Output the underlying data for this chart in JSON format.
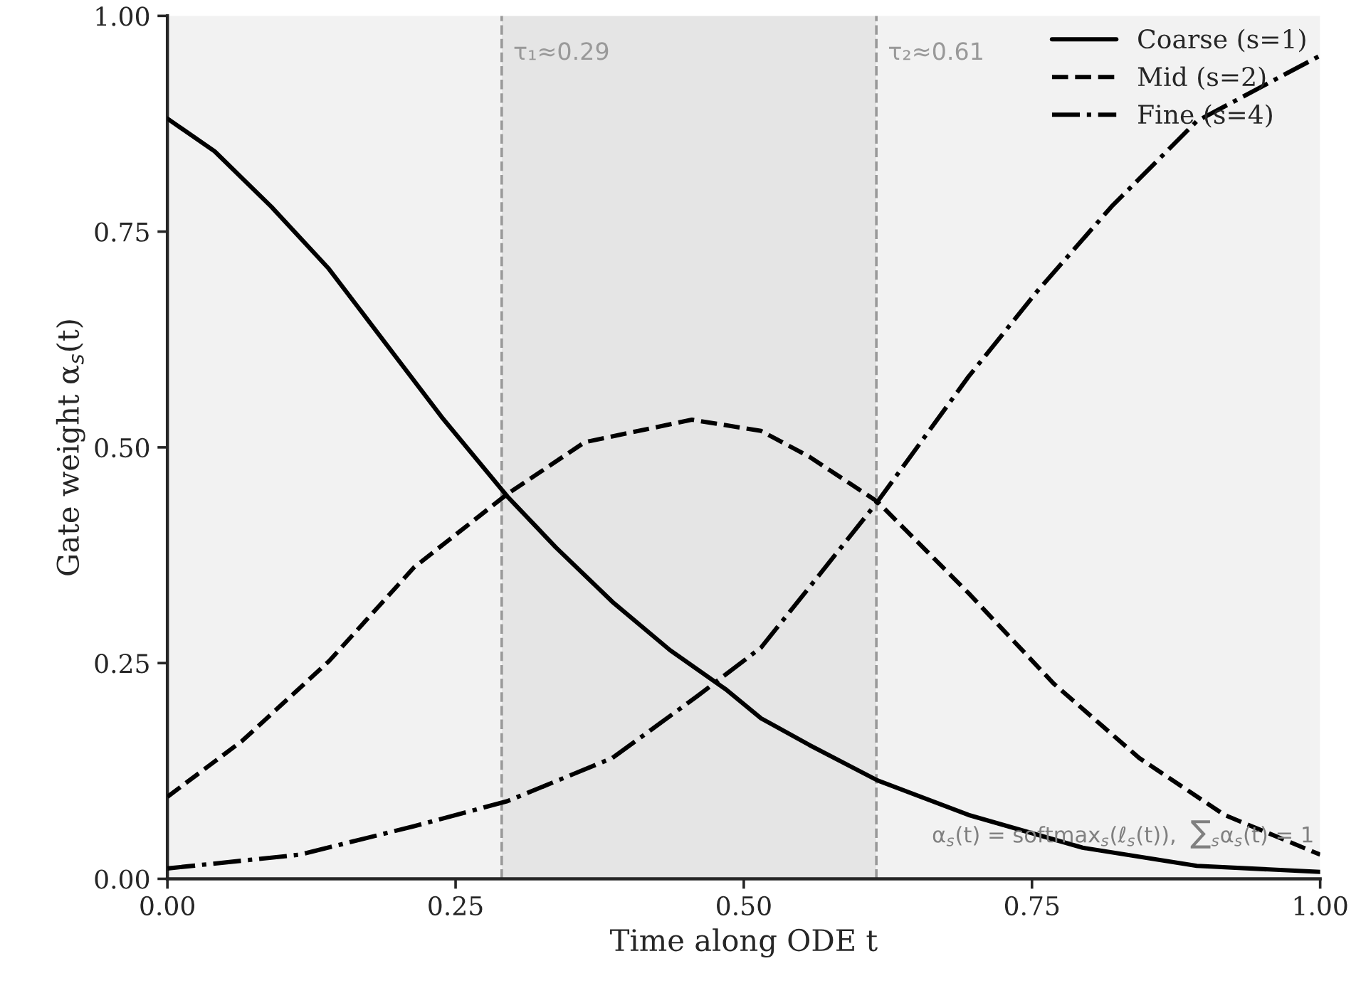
{
  "chart_data": {
    "type": "line",
    "xlabel": "Time along ODE t",
    "ylabel": "Gate weight α$_{s}$(t)",
    "xlim": [
      0,
      1
    ],
    "ylim": [
      0,
      1
    ],
    "xticks": [
      {
        "value": 0,
        "label": "0.00"
      },
      {
        "value": 0.25,
        "label": "0.25"
      },
      {
        "value": 0.5,
        "label": "0.50"
      },
      {
        "value": 0.75,
        "label": "0.75"
      },
      {
        "value": 1,
        "label": "1.00"
      }
    ],
    "yticks": [
      {
        "value": 0,
        "label": "0.00"
      },
      {
        "value": 0.25,
        "label": "0.25"
      },
      {
        "value": 0.5,
        "label": "0.50"
      },
      {
        "value": 0.75,
        "label": "0.75"
      },
      {
        "value": 1,
        "label": "1.00"
      }
    ],
    "grid": false,
    "legend": "top right",
    "series": [
      {
        "name": "Coarse (s=1)",
        "color": "#000000",
        "line_style": "solid",
        "x": [
          0,
          0.041,
          0.09,
          0.14,
          0.189,
          0.238,
          0.295,
          0.337,
          0.386,
          0.436,
          0.485,
          0.515,
          0.557,
          0.616,
          0.695,
          0.794,
          0.893,
          1.0
        ],
        "values": [
          0.881,
          0.843,
          0.779,
          0.707,
          0.621,
          0.535,
          0.443,
          0.384,
          0.321,
          0.265,
          0.219,
          0.186,
          0.155,
          0.114,
          0.074,
          0.036,
          0.015,
          0.008
        ]
      },
      {
        "name": "Mid (s=2)",
        "color": "#000000",
        "line_style": "dashed",
        "x": [
          0,
          0.065,
          0.14,
          0.214,
          0.295,
          0.362,
          0.455,
          0.515,
          0.557,
          0.616,
          0.695,
          0.769,
          0.843,
          0.917,
          1.0
        ],
        "values": [
          0.095,
          0.16,
          0.252,
          0.361,
          0.446,
          0.506,
          0.532,
          0.519,
          0.489,
          0.437,
          0.331,
          0.226,
          0.14,
          0.074,
          0.028
        ]
      },
      {
        "name": "Fine (s=4)",
        "color": "#000000",
        "line_style": "dashdot",
        "x": [
          0,
          0.115,
          0.214,
          0.295,
          0.386,
          0.46,
          0.515,
          0.557,
          0.616,
          0.695,
          0.754,
          0.819,
          0.893,
          1.0
        ],
        "values": [
          0.012,
          0.028,
          0.061,
          0.09,
          0.14,
          0.212,
          0.268,
          0.338,
          0.437,
          0.582,
          0.68,
          0.779,
          0.878,
          0.954
        ]
      }
    ],
    "bands": [
      {
        "axis": "x",
        "from": 0,
        "to": 0.29,
        "color": "#f2f2f2"
      },
      {
        "axis": "x",
        "from": 0.29,
        "to": 0.615,
        "color": "#e5e5e5"
      },
      {
        "axis": "x",
        "from": 0.615,
        "to": 1,
        "color": "#f2f2f2"
      }
    ],
    "ref_lines": [
      {
        "axis": "x",
        "value": 0.29,
        "label": "τ₁≈0.29",
        "color": "#999999",
        "line_style": "dashed"
      },
      {
        "axis": "x",
        "value": 0.615,
        "label": "τ₂≈0.61",
        "color": "#999999",
        "line_style": "dashed"
      }
    ],
    "annotations": [
      "α$_{s}$(t) = softmax$_{s}$(ℓ$_{s}$(t)),  ∑$_{s}$α$_{s}$(t) = 1"
    ]
  }
}
